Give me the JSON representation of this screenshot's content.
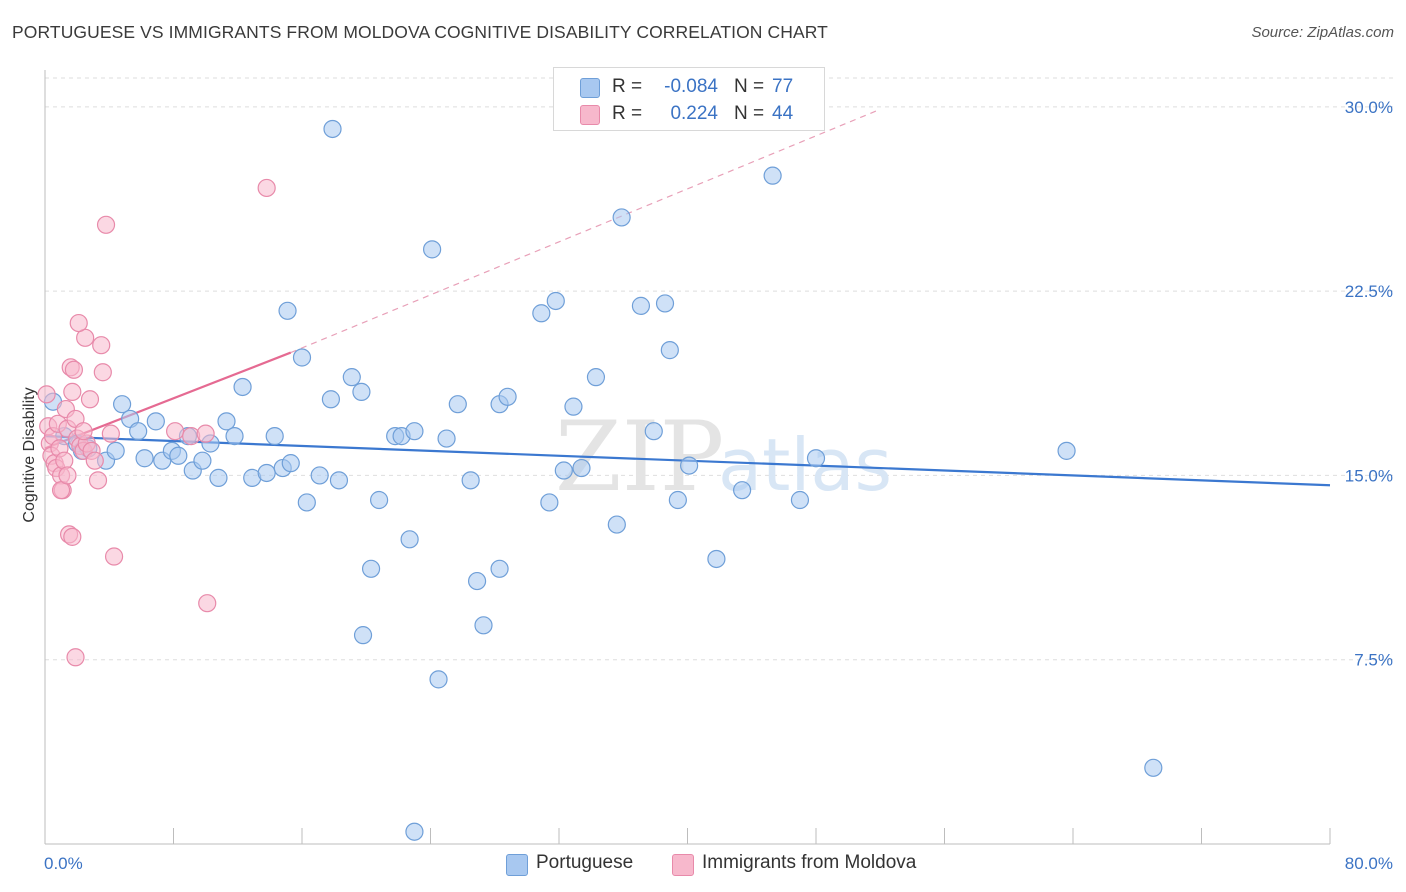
{
  "header": {
    "title": "PORTUGUESE VS IMMIGRANTS FROM MOLDOVA COGNITIVE DISABILITY CORRELATION CHART",
    "source": "Source: ZipAtlas.com"
  },
  "watermark": {
    "text_zip": "ZIP",
    "text_atlas": "atlas"
  },
  "legend": {
    "rows": [
      {
        "r_label": "R =",
        "r_value": "-0.084",
        "n_label": "N =",
        "n_value": "77",
        "color": "#a8c8f0",
        "border": "#6f9fd8"
      },
      {
        "r_label": "R =",
        "r_value": "0.224",
        "n_label": "N =",
        "n_value": "44",
        "color": "#f7b8cc",
        "border": "#e88aaa"
      }
    ]
  },
  "bottom_legend": {
    "items": [
      {
        "label": "Portuguese",
        "color": "#a8c8f0",
        "border": "#6f9fd8"
      },
      {
        "label": "Immigrants from Moldova",
        "color": "#f7b8cc",
        "border": "#e88aaa"
      }
    ]
  },
  "chart_data": {
    "type": "scatter",
    "title": "PORTUGUESE VS IMMIGRANTS FROM MOLDOVA COGNITIVE DISABILITY CORRELATION CHART",
    "xlabel": "",
    "ylabel": "Cognitive Disability",
    "xlim": [
      0,
      80
    ],
    "ylim": [
      0,
      31.5
    ],
    "x_tick_labels": [
      "0.0%",
      "80.0%"
    ],
    "y_ticks": [
      7.5,
      15.0,
      22.5,
      30.0
    ],
    "y_tick_labels": [
      "7.5%",
      "15.0%",
      "22.5%",
      "30.0%"
    ],
    "grid": "horizontal dashed",
    "legend_position": "top-center",
    "series": [
      {
        "name": "Portuguese",
        "color": "#a8c8f0",
        "stroke": "#6f9fd8",
        "trend": {
          "x": [
            0,
            80
          ],
          "y": [
            16.6,
            14.6
          ],
          "color": "#3b78d0"
        },
        "points": [
          [
            0.5,
            18.0
          ],
          [
            1.2,
            16.6
          ],
          [
            2.0,
            16.3
          ],
          [
            2.3,
            16.0
          ],
          [
            2.7,
            16.1
          ],
          [
            3.8,
            15.6
          ],
          [
            4.4,
            16.0
          ],
          [
            4.8,
            17.9
          ],
          [
            5.3,
            17.3
          ],
          [
            5.8,
            16.8
          ],
          [
            6.2,
            15.7
          ],
          [
            6.9,
            17.2
          ],
          [
            7.3,
            15.6
          ],
          [
            7.9,
            16.0
          ],
          [
            8.3,
            15.8
          ],
          [
            8.9,
            16.6
          ],
          [
            9.2,
            15.2
          ],
          [
            9.8,
            15.6
          ],
          [
            10.3,
            16.3
          ],
          [
            10.8,
            14.9
          ],
          [
            11.3,
            17.2
          ],
          [
            11.8,
            16.6
          ],
          [
            12.3,
            18.6
          ],
          [
            12.9,
            14.9
          ],
          [
            13.8,
            15.1
          ],
          [
            14.3,
            16.6
          ],
          [
            14.8,
            15.3
          ],
          [
            15.3,
            15.5
          ],
          [
            15.1,
            21.7
          ],
          [
            16.3,
            13.9
          ],
          [
            16.0,
            19.8
          ],
          [
            17.1,
            15.0
          ],
          [
            17.8,
            18.1
          ],
          [
            18.3,
            14.8
          ],
          [
            19.1,
            19.0
          ],
          [
            19.7,
            18.4
          ],
          [
            17.9,
            29.1
          ],
          [
            19.8,
            8.5
          ],
          [
            20.3,
            11.2
          ],
          [
            20.8,
            14.0
          ],
          [
            21.8,
            16.6
          ],
          [
            22.7,
            12.4
          ],
          [
            22.2,
            16.6
          ],
          [
            23.0,
            16.8
          ],
          [
            24.5,
            6.7
          ],
          [
            24.1,
            24.2
          ],
          [
            25.0,
            16.5
          ],
          [
            25.7,
            17.9
          ],
          [
            26.5,
            14.8
          ],
          [
            26.9,
            10.7
          ],
          [
            27.3,
            8.9
          ],
          [
            28.3,
            11.2
          ],
          [
            28.3,
            17.9
          ],
          [
            28.8,
            18.2
          ],
          [
            30.9,
            21.6
          ],
          [
            31.4,
            13.9
          ],
          [
            31.8,
            22.1
          ],
          [
            32.3,
            15.2
          ],
          [
            32.9,
            17.8
          ],
          [
            33.4,
            15.3
          ],
          [
            34.3,
            19.0
          ],
          [
            35.6,
            13.0
          ],
          [
            35.9,
            25.5
          ],
          [
            37.1,
            21.9
          ],
          [
            37.9,
            16.8
          ],
          [
            38.6,
            22.0
          ],
          [
            38.9,
            20.1
          ],
          [
            39.4,
            14.0
          ],
          [
            40.1,
            15.4
          ],
          [
            41.8,
            11.6
          ],
          [
            43.4,
            14.4
          ],
          [
            45.3,
            27.2
          ],
          [
            47.0,
            14.0
          ],
          [
            48.0,
            15.7
          ],
          [
            63.6,
            16.0
          ],
          [
            69.0,
            3.1
          ],
          [
            23.0,
            0.5
          ]
        ]
      },
      {
        "name": "Immigrants from Moldova",
        "color": "#f7b8cc",
        "stroke": "#e88aaa",
        "trend": {
          "x": [
            0,
            15.3
          ],
          "y": [
            16.1,
            20.0
          ],
          "dashed_to": [
            52,
            29.9
          ],
          "color": "#e56a92"
        },
        "points": [
          [
            0.1,
            18.3
          ],
          [
            0.2,
            17.0
          ],
          [
            0.3,
            16.3
          ],
          [
            0.4,
            15.8
          ],
          [
            0.5,
            16.6
          ],
          [
            0.6,
            15.5
          ],
          [
            0.7,
            15.3
          ],
          [
            0.8,
            17.1
          ],
          [
            0.9,
            16.1
          ],
          [
            1.0,
            15.0
          ],
          [
            1.1,
            14.4
          ],
          [
            1.2,
            15.6
          ],
          [
            1.3,
            17.7
          ],
          [
            1.4,
            16.9
          ],
          [
            1.5,
            12.6
          ],
          [
            1.6,
            19.4
          ],
          [
            1.7,
            18.4
          ],
          [
            1.8,
            19.3
          ],
          [
            1.9,
            17.3
          ],
          [
            2.0,
            16.5
          ],
          [
            2.2,
            16.2
          ],
          [
            2.4,
            16.0
          ],
          [
            2.5,
            20.6
          ],
          [
            2.6,
            16.3
          ],
          [
            2.8,
            18.1
          ],
          [
            2.9,
            16.0
          ],
          [
            3.1,
            15.6
          ],
          [
            3.3,
            14.8
          ],
          [
            3.5,
            20.3
          ],
          [
            3.6,
            19.2
          ],
          [
            3.8,
            25.2
          ],
          [
            4.1,
            16.7
          ],
          [
            4.3,
            11.7
          ],
          [
            1.0,
            14.4
          ],
          [
            1.4,
            15.0
          ],
          [
            1.7,
            12.5
          ],
          [
            1.9,
            7.6
          ],
          [
            2.1,
            21.2
          ],
          [
            2.4,
            16.8
          ],
          [
            8.1,
            16.8
          ],
          [
            9.1,
            16.6
          ],
          [
            10.0,
            16.7
          ],
          [
            10.1,
            9.8
          ],
          [
            13.8,
            26.7
          ]
        ]
      }
    ]
  }
}
